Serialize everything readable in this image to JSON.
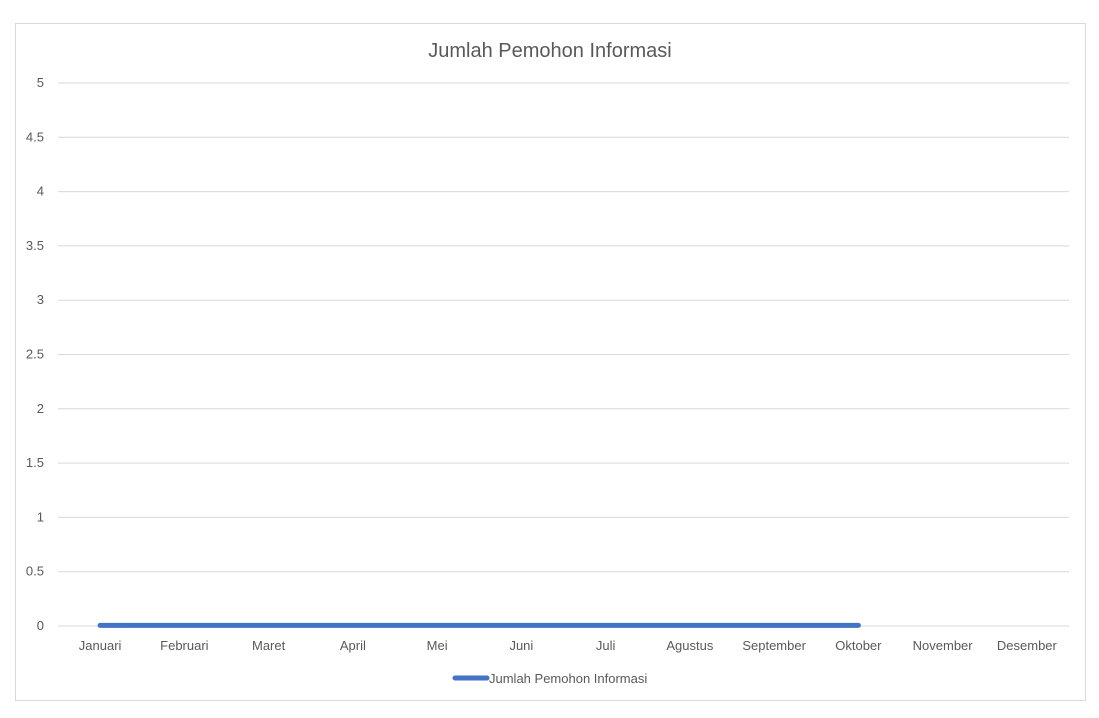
{
  "chart_data": {
    "type": "line",
    "title": "Jumlah Pemohon Informasi",
    "xlabel": "",
    "ylabel": "",
    "categories": [
      "Januari",
      "Februari",
      "Maret",
      "April",
      "Mei",
      "Juni",
      "Juli",
      "Agustus",
      "September",
      "Oktober",
      "November",
      "Desember"
    ],
    "series": [
      {
        "name": "Jumlah Pemohon Informasi",
        "values": [
          0,
          0,
          0,
          0,
          0,
          0,
          0,
          0,
          0,
          0,
          null,
          null
        ],
        "color": "#4472C4"
      }
    ],
    "ylim": [
      0,
      5
    ],
    "yticks": [
      "0",
      "0.5",
      "1",
      "1.5",
      "2",
      "2.5",
      "3",
      "3.5",
      "4",
      "4.5",
      "5"
    ],
    "grid": true,
    "legend": "bottom"
  }
}
